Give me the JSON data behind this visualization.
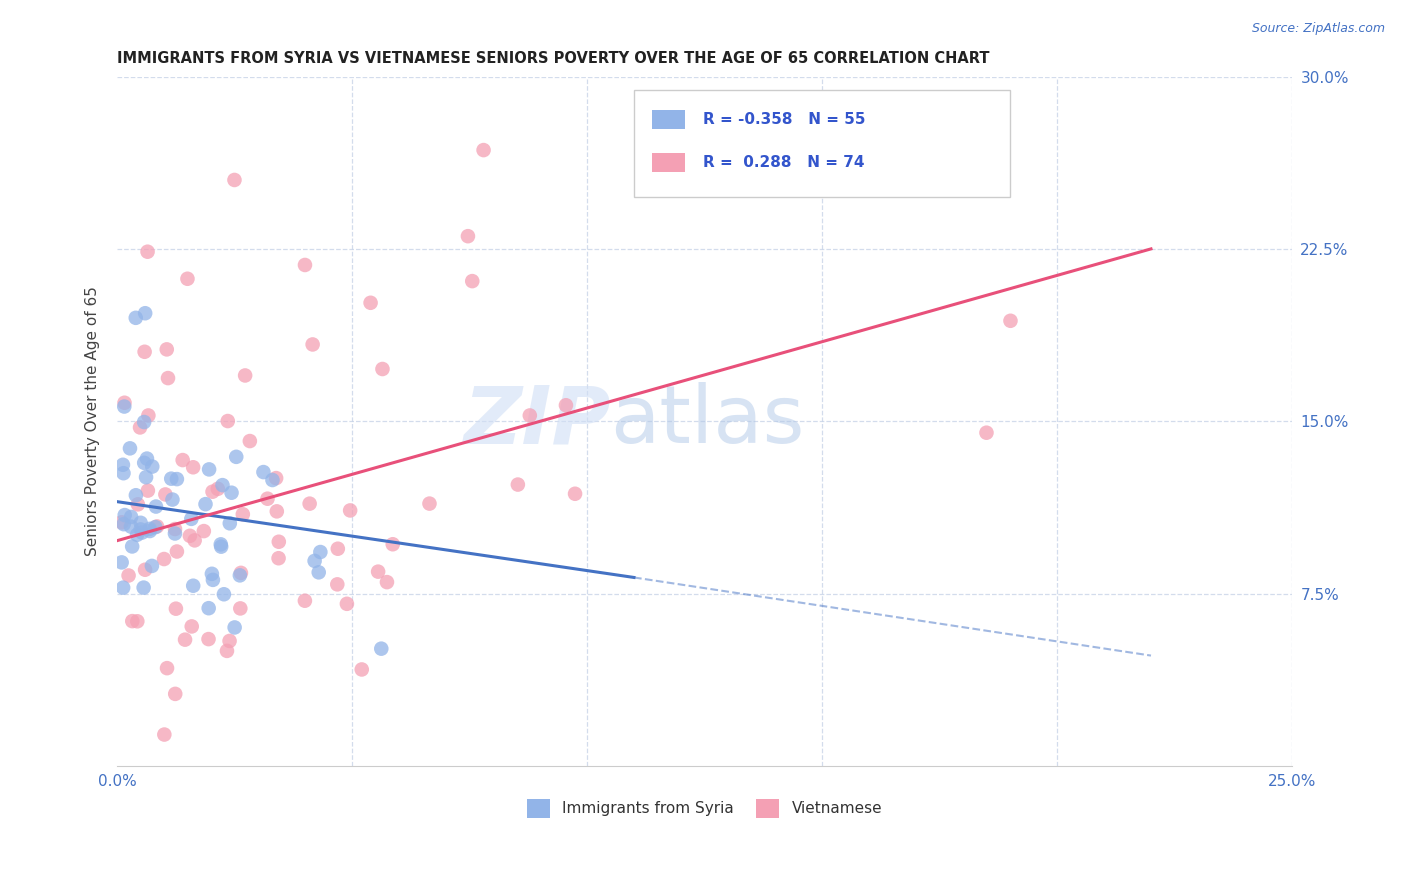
{
  "title": "IMMIGRANTS FROM SYRIA VS VIETNAMESE SENIORS POVERTY OVER THE AGE OF 65 CORRELATION CHART",
  "source": "Source: ZipAtlas.com",
  "ylabel": "Seniors Poverty Over the Age of 65",
  "xlim": [
    0.0,
    0.25
  ],
  "ylim": [
    0.0,
    0.3
  ],
  "xticks": [
    0.0,
    0.05,
    0.1,
    0.15,
    0.2,
    0.25
  ],
  "xticklabels": [
    "0.0%",
    "",
    "",
    "",
    "",
    "25.0%"
  ],
  "yticks": [
    0.0,
    0.075,
    0.15,
    0.225,
    0.3
  ],
  "yticklabels_right": [
    "",
    "7.5%",
    "15.0%",
    "22.5%",
    "30.0%"
  ],
  "syria_color": "#92b4e8",
  "viet_color": "#f4a0b4",
  "syria_line_color": "#4472c4",
  "viet_line_color": "#e8507a",
  "watermark_color": "#d0dff5",
  "background_color": "#ffffff",
  "grid_color": "#c8d4e8",
  "syria_R": -0.358,
  "syria_N": 55,
  "viet_R": 0.288,
  "viet_N": 74,
  "syria_line_x0": 0.0,
  "syria_line_y0": 0.115,
  "syria_line_x1": 0.11,
  "syria_line_y1": 0.082,
  "syria_line_dash_x1": 0.22,
  "syria_line_dash_y1": 0.048,
  "viet_line_x0": 0.0,
  "viet_line_y0": 0.098,
  "viet_line_x1": 0.22,
  "viet_line_y1": 0.225,
  "legend_r_syria": "-0.358",
  "legend_n_syria": "55",
  "legend_r_viet": "0.288",
  "legend_n_viet": "74"
}
